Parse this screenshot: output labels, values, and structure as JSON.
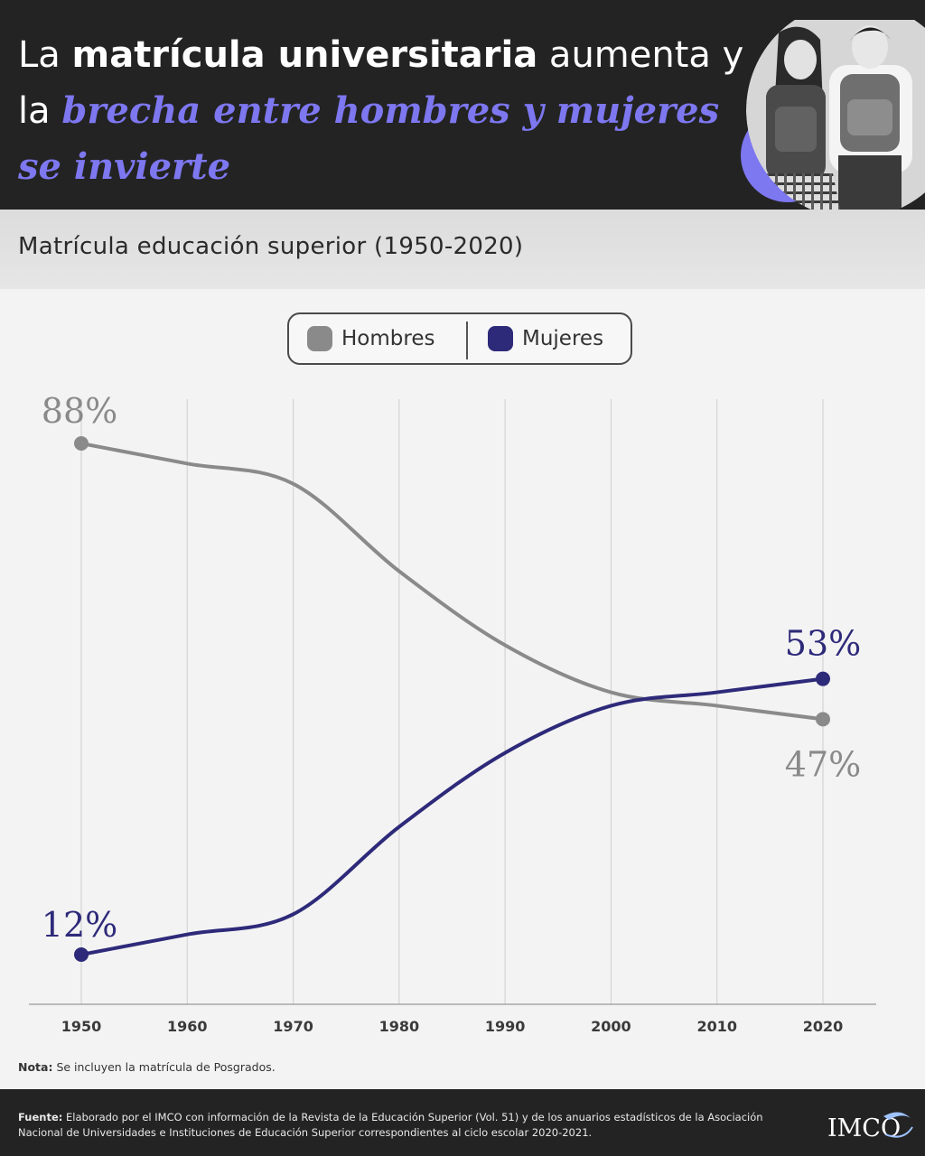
{
  "header": {
    "title_part1": "La ",
    "title_bold": "matrícula universitaria",
    "title_part2": " aumenta y la ",
    "title_highlight": "brecha entre hombres y mujeres se invierte"
  },
  "subtitle": "Matrícula educación superior (1950-2020)",
  "note": {
    "label": "Nota:",
    "text": " Se incluyen la matrícula de Posgrados."
  },
  "source": {
    "label": "Fuente:",
    "text": " Elaborado por el IMCO con información de la Revista de la Educación Superior (Vol. 51) y de los anuarios estadísticos de la Asociación Nacional de Universidades e Instituciones de Educación Superior correspondientes al ciclo escolar 2020-2021."
  },
  "logo": {
    "text": "IMCO"
  },
  "colors": {
    "header_bg": "#232323",
    "highlight": "#7d77f0",
    "hombres": "#8a8a8a",
    "mujeres": "#2e2a7a"
  },
  "chart_data": {
    "type": "line",
    "title": "Matrícula educación superior (1950-2020)",
    "x": [
      1950,
      1960,
      1970,
      1980,
      1990,
      2000,
      2010,
      2020
    ],
    "tick_labels": [
      "1950",
      "1960",
      "1970",
      "1980",
      "1990",
      "2000",
      "2010",
      "2020"
    ],
    "ylim": [
      0,
      100
    ],
    "grid": "vertical",
    "legend_position": "top-center",
    "series": [
      {
        "name": "Hombres",
        "color": "#8a8a8a",
        "values": [
          88,
          85,
          82,
          69,
          58,
          51,
          49,
          47
        ],
        "labels": [
          {
            "index": 0,
            "text": "88%"
          },
          {
            "index": 7,
            "text": "47%"
          }
        ]
      },
      {
        "name": "Mujeres",
        "color": "#2e2a7a",
        "values": [
          12,
          15,
          18,
          31,
          42,
          49,
          51,
          53
        ],
        "labels": [
          {
            "index": 0,
            "text": "12%"
          },
          {
            "index": 7,
            "text": "53%"
          }
        ]
      }
    ]
  }
}
